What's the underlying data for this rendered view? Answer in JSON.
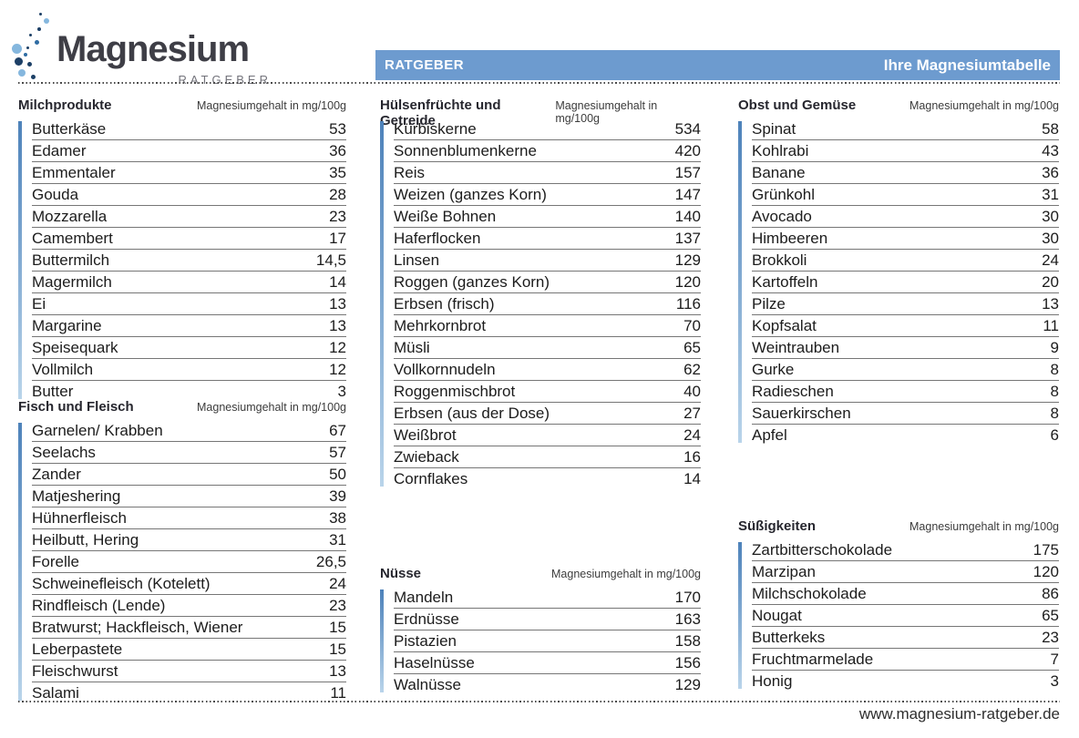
{
  "logo": {
    "title": "Magnesium",
    "subtitle": "RATGEBER"
  },
  "header_bar": {
    "left_label": "RATGEBER",
    "right_label": "Ihre Magnesiumtabelle",
    "bg_color": "#6d9bcf",
    "text_color": "#ffffff"
  },
  "colors": {
    "accent_blue": "#6d9bcf",
    "bar_gradient_top": "#4d82ba",
    "bar_gradient_bottom": "#b9d4ea",
    "logo_dark_dot": "#1c3f66",
    "logo_light_dot": "#85b7de"
  },
  "sections": [
    {
      "title": "Milchprodukte",
      "unit": "Magnesiumgehalt in mg/100g",
      "rows": [
        {
          "label": "Butterkäse",
          "value": "53"
        },
        {
          "label": "Edamer",
          "value": "36"
        },
        {
          "label": "Emmentaler",
          "value": "35"
        },
        {
          "label": "Gouda",
          "value": "28"
        },
        {
          "label": "Mozzarella",
          "value": "23"
        },
        {
          "label": "Camembert",
          "value": "17"
        },
        {
          "label": "Buttermilch",
          "value": "14,5"
        },
        {
          "label": "Magermilch",
          "value": "14"
        },
        {
          "label": "Ei",
          "value": "13"
        },
        {
          "label": "Margarine",
          "value": "13"
        },
        {
          "label": "Speisequark",
          "value": "12"
        },
        {
          "label": "Vollmilch",
          "value": "12"
        },
        {
          "label": "Butter",
          "value": "3"
        }
      ]
    },
    {
      "title": "Fisch und Fleisch",
      "unit": "Magnesiumgehalt in mg/100g",
      "rows": [
        {
          "label": "Garnelen/ Krabben",
          "value": "67"
        },
        {
          "label": "Seelachs",
          "value": "57"
        },
        {
          "label": "Zander",
          "value": "50"
        },
        {
          "label": "Matjeshering",
          "value": "39"
        },
        {
          "label": "Hühnerfleisch",
          "value": "38"
        },
        {
          "label": "Heilbutt, Hering",
          "value": "31"
        },
        {
          "label": "Forelle",
          "value": "26,5"
        },
        {
          "label": "Schweinefleisch (Kotelett)",
          "value": "24"
        },
        {
          "label": "Rindfleisch (Lende)",
          "value": "23"
        },
        {
          "label": "Bratwurst; Hackfleisch, Wiener",
          "value": "15"
        },
        {
          "label": "Leberpastete",
          "value": "15"
        },
        {
          "label": "Fleischwurst",
          "value": "13"
        },
        {
          "label": "Salami",
          "value": "11"
        }
      ]
    },
    {
      "title": "Hülsenfrüchte und Getreide",
      "unit": "Magnesiumgehalt in mg/100g",
      "rows": [
        {
          "label": "Kürbiskerne",
          "value": "534"
        },
        {
          "label": "Sonnenblumenkerne",
          "value": "420"
        },
        {
          "label": "Reis",
          "value": "157"
        },
        {
          "label": "Weizen (ganzes Korn)",
          "value": "147"
        },
        {
          "label": "Weiße Bohnen",
          "value": "140"
        },
        {
          "label": "Haferflocken",
          "value": "137"
        },
        {
          "label": "Linsen",
          "value": "129"
        },
        {
          "label": "Roggen (ganzes Korn)",
          "value": "120"
        },
        {
          "label": "Erbsen (frisch)",
          "value": "116"
        },
        {
          "label": "Mehrkornbrot",
          "value": "70"
        },
        {
          "label": "Müsli",
          "value": "65"
        },
        {
          "label": "Vollkornnudeln",
          "value": "62"
        },
        {
          "label": "Roggenmischbrot",
          "value": "40"
        },
        {
          "label": "Erbsen (aus der Dose)",
          "value": "27"
        },
        {
          "label": "Weißbrot",
          "value": "24"
        },
        {
          "label": "Zwieback",
          "value": "16"
        },
        {
          "label": "Cornflakes",
          "value": "14"
        }
      ]
    },
    {
      "title": "Nüsse",
      "unit": "Magnesiumgehalt in mg/100g",
      "rows": [
        {
          "label": "Mandeln",
          "value": "170"
        },
        {
          "label": "Erdnüsse",
          "value": "163"
        },
        {
          "label": "Pistazien",
          "value": "158"
        },
        {
          "label": "Haselnüsse",
          "value": "156"
        },
        {
          "label": "Walnüsse",
          "value": "129"
        }
      ]
    },
    {
      "title": "Obst und Gemüse",
      "unit": "Magnesiumgehalt in mg/100g",
      "rows": [
        {
          "label": "Spinat",
          "value": "58"
        },
        {
          "label": "Kohlrabi",
          "value": "43"
        },
        {
          "label": "Banane",
          "value": "36"
        },
        {
          "label": "Grünkohl",
          "value": "31"
        },
        {
          "label": "Avocado",
          "value": "30"
        },
        {
          "label": "Himbeeren",
          "value": "30"
        },
        {
          "label": "Brokkoli",
          "value": "24"
        },
        {
          "label": "Kartoffeln",
          "value": "20"
        },
        {
          "label": "Pilze",
          "value": "13"
        },
        {
          "label": "Kopfsalat",
          "value": "11"
        },
        {
          "label": "Weintrauben",
          "value": "9"
        },
        {
          "label": "Gurke",
          "value": "8"
        },
        {
          "label": "Radieschen",
          "value": "8"
        },
        {
          "label": "Sauerkirschen",
          "value": "8"
        },
        {
          "label": "Apfel",
          "value": "6"
        }
      ]
    },
    {
      "title": "Süßigkeiten",
      "unit": "Magnesiumgehalt in mg/100g",
      "rows": [
        {
          "label": "Zartbitterschokolade",
          "value": "175"
        },
        {
          "label": "Marzipan",
          "value": "120"
        },
        {
          "label": "Milchschokolade",
          "value": "86"
        },
        {
          "label": "Nougat",
          "value": "65"
        },
        {
          "label": "Butterkeks",
          "value": "23"
        },
        {
          "label": "Fruchtmarmelade",
          "value": "7"
        },
        {
          "label": "Honig",
          "value": "3"
        }
      ]
    }
  ],
  "footer": {
    "url": "www.magnesium-ratgeber.de"
  }
}
